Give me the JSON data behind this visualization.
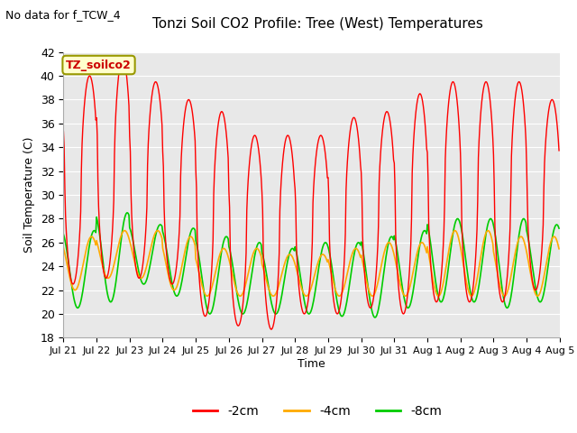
{
  "title": "Tonzi Soil CO2 Profile: Tree (West) Temperatures",
  "subtitle": "No data for f_TCW_4",
  "ylabel": "Soil Temperature (C)",
  "xlabel": "Time",
  "legend_label": "TZ_soilco2",
  "ylim": [
    18,
    42
  ],
  "yticks": [
    18,
    20,
    22,
    24,
    26,
    28,
    30,
    32,
    34,
    36,
    38,
    40,
    42
  ],
  "bg_color": "#e8e8e8",
  "fig_color": "#ffffff",
  "line_colors": {
    "m2cm": "#ff0000",
    "m4cm": "#ffaa00",
    "m8cm": "#00cc00"
  },
  "legend_labels": {
    "m2cm": "-2cm",
    "m4cm": "-4cm",
    "m8cm": "-8cm"
  },
  "x_tick_labels": [
    "Jul 21",
    "Jul 22",
    "Jul 23",
    "Jul 24",
    "Jul 25",
    "Jul 26",
    "Jul 27",
    "Jul 28",
    "Jul 29",
    "Jul 30",
    "Jul 31",
    "Aug 1",
    "Aug 2",
    "Aug 3",
    "Aug 4",
    "Aug 5"
  ],
  "n_days": 15
}
